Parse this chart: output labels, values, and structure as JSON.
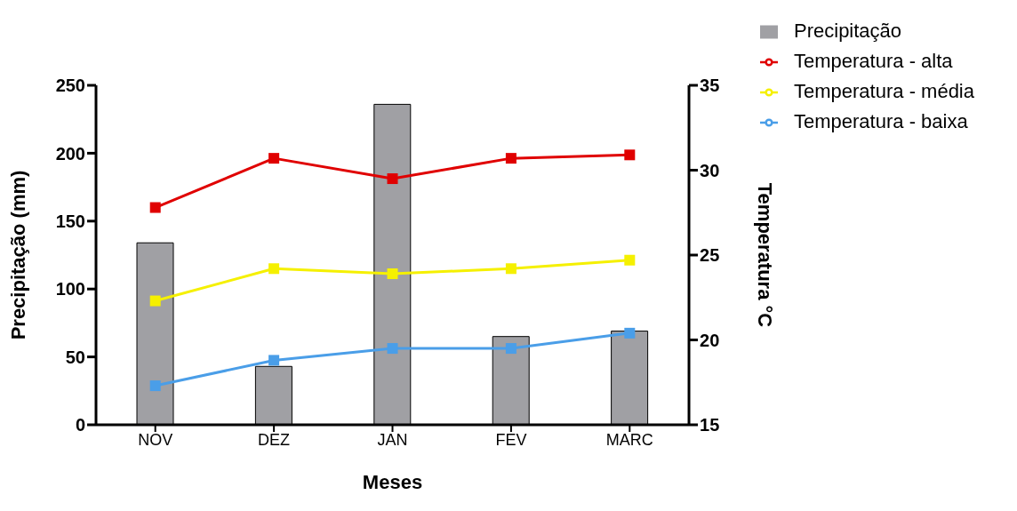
{
  "chart_data": {
    "type": "bar",
    "xlabel": "Meses",
    "ylabel": "Precipitação (mm)",
    "y2label": "Temperatura °C",
    "categories": [
      "NOV",
      "DEZ",
      "JAN",
      "FEV",
      "MARC"
    ],
    "series": [
      {
        "name": "Precipitação",
        "color": "#a0a0a4",
        "values": [
          134,
          43,
          236,
          65,
          69
        ]
      },
      {
        "name": "Temperatura - alta",
        "type": "line",
        "axis": "y2",
        "color": "#e00000",
        "values": [
          27.8,
          30.7,
          29.5,
          30.7,
          30.9
        ]
      },
      {
        "name": "Temperatura - média",
        "type": "line",
        "axis": "y2",
        "color": "#f5f000",
        "values": [
          22.3,
          24.2,
          23.9,
          24.2,
          24.7
        ]
      },
      {
        "name": "Temperatura - baixa",
        "type": "line",
        "axis": "y2",
        "color": "#4a9ee8",
        "values": [
          17.3,
          18.8,
          19.5,
          19.5,
          20.4
        ]
      }
    ],
    "ylim": [
      0,
      250
    ],
    "yticks": [
      0,
      50,
      100,
      150,
      200,
      250
    ],
    "y2lim": [
      15,
      35
    ],
    "y2ticks": [
      15,
      20,
      25,
      30,
      35
    ],
    "grid": false,
    "legend": "top right",
    "marker": "square",
    "line_style": "solid"
  }
}
